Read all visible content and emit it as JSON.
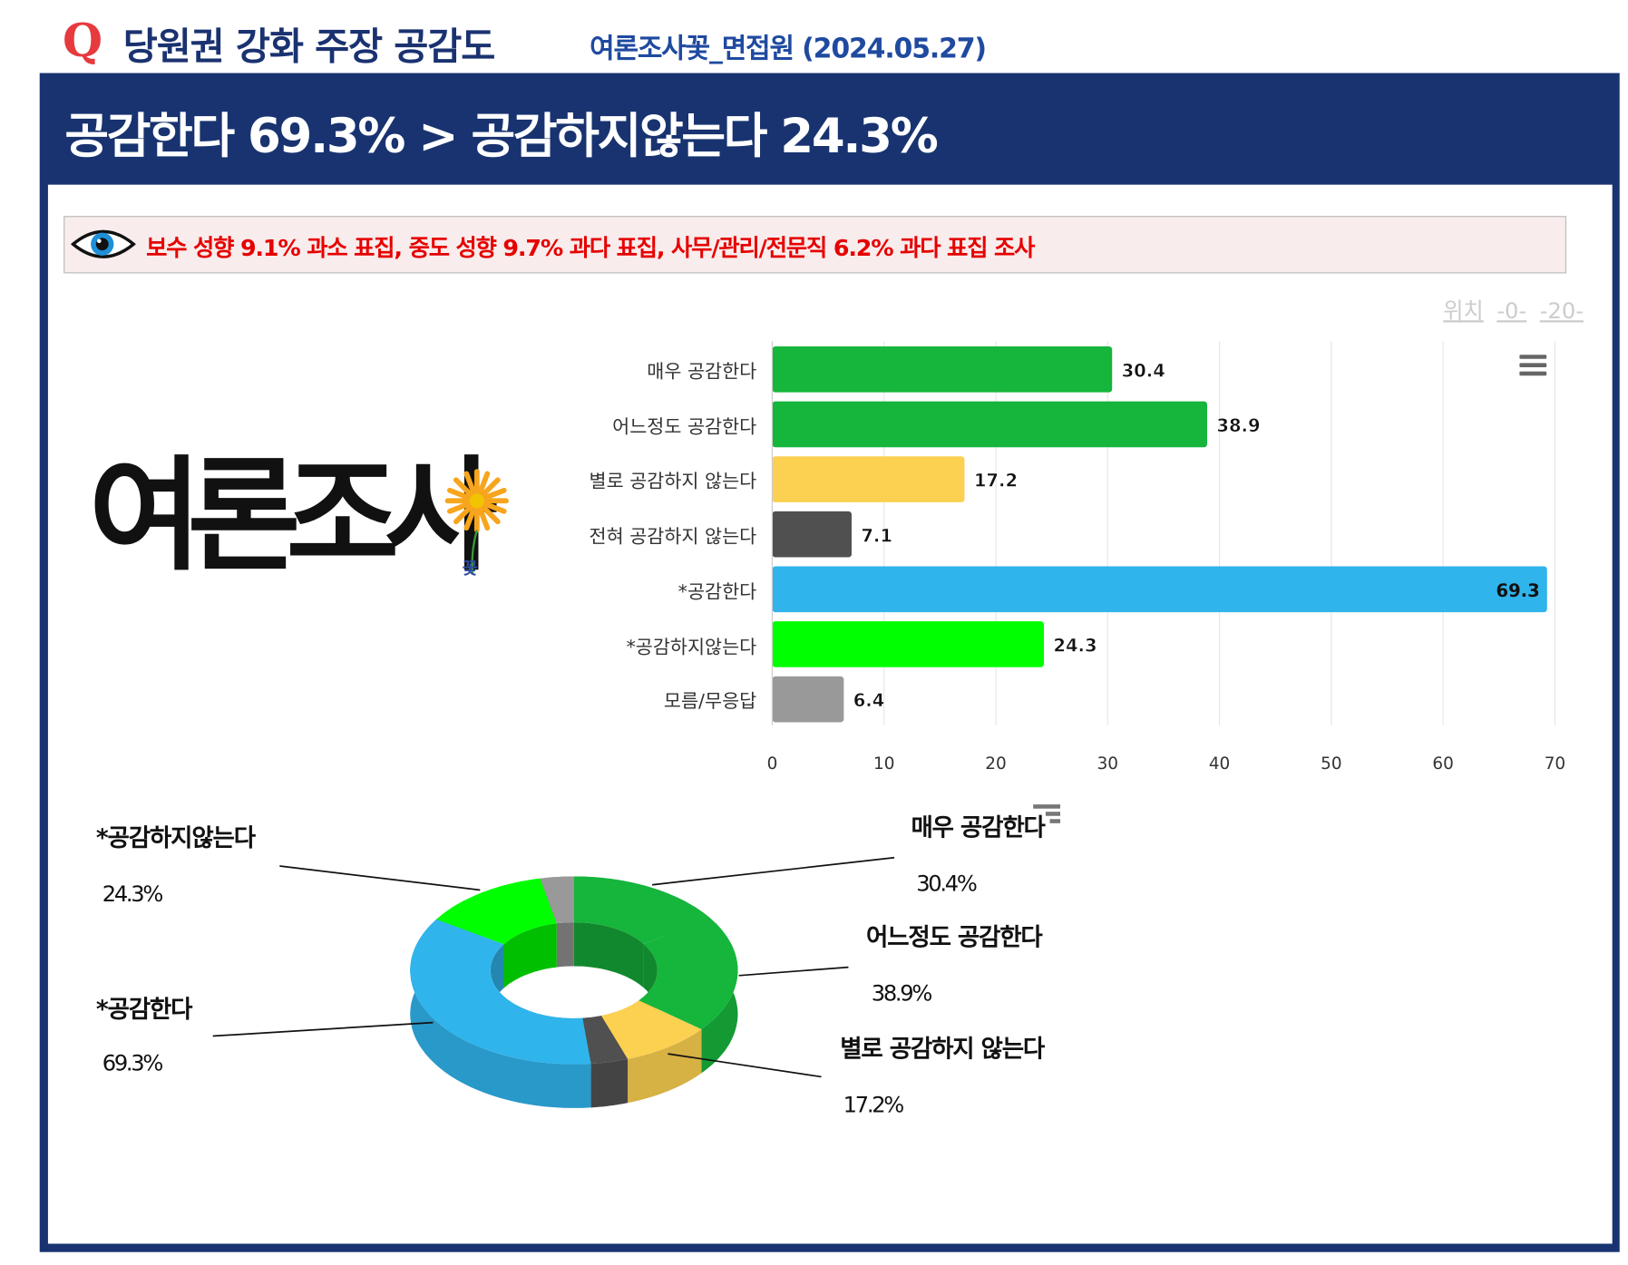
{
  "header": {
    "q": "Q",
    "title": "당원권 강화 주장 공감도",
    "subtitle": "여론조사꽃_면접원 (2024.05.27)"
  },
  "headline": "공감한다 69.3% > 공감하지않는다 24.3%",
  "notice": {
    "icon": "eye-icon",
    "text": "보수 성향 9.1% 과소 표집, 중도 성향 9.7% 과다 표집, 사무/관리/전문직 6.2% 과다 표집 조사"
  },
  "position": {
    "label": "위치",
    "links": [
      "-0-",
      "-20-"
    ]
  },
  "logo": {
    "text": "여론조사",
    "small": "꽃"
  },
  "chart_data": [
    {
      "type": "bar",
      "orientation": "horizontal",
      "categories": [
        "매우 공감한다",
        "어느정도 공감한다",
        "별로 공감하지 않는다",
        "전혀 공감하지 않는다",
        "*공감한다",
        "*공감하지않는다",
        "모름/무응답"
      ],
      "values": [
        30.4,
        38.9,
        17.2,
        7.1,
        69.3,
        24.3,
        6.4
      ],
      "value_labels": [
        "30.4",
        "38.9",
        "17.2",
        "7.1",
        "69.3",
        "24.3",
        "6.4"
      ],
      "colors": [
        "#16b53c",
        "#16b53c",
        "#fcd050",
        "#505050",
        "#30b4ec",
        "#00ff00",
        "#999999"
      ],
      "xlim": [
        0,
        70
      ],
      "ticks": [
        "0",
        "10",
        "20",
        "30",
        "40",
        "50",
        "60",
        "70"
      ],
      "grid": true
    },
    {
      "type": "pie",
      "variant": "3d-donut",
      "categories": [
        "매우 공감한다",
        "어느정도 공감한다",
        "별로 공감하지 않는다",
        "전혀 공감하지 않는다",
        "*공감한다",
        "*공감하지않는다",
        "모름/무응답"
      ],
      "values": [
        30.4,
        38.9,
        17.2,
        7.1,
        69.3,
        24.3,
        6.4
      ],
      "colors": [
        "#16b53c",
        "#16b53c",
        "#fcd050",
        "#505050",
        "#30b4ec",
        "#00ff00",
        "#999999"
      ],
      "labels": [
        {
          "name": "매우 공감한다",
          "pct": "30.4%"
        },
        {
          "name": "어느정도 공감한다",
          "pct": "38.9%"
        },
        {
          "name": "별로 공감하지 않는다",
          "pct": "17.2%"
        },
        {
          "name": "*공감한다",
          "pct": "69.3%"
        },
        {
          "name": "*공감하지않는다",
          "pct": "24.3%"
        }
      ]
    }
  ]
}
